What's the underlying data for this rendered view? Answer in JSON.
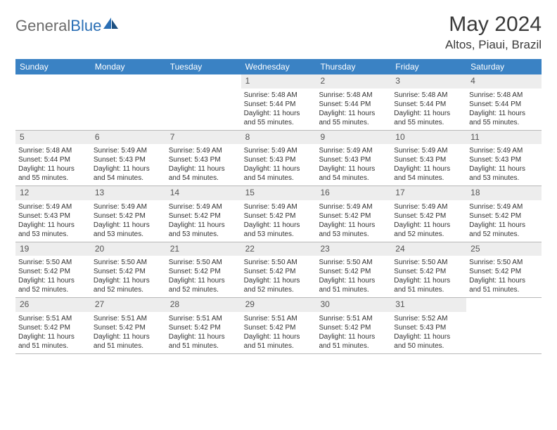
{
  "brand": {
    "part1": "General",
    "part2": "Blue"
  },
  "title": "May 2024",
  "location": "Altos, Piaui, Brazil",
  "colors": {
    "header_bg": "#3a82c4",
    "header_text": "#ffffff",
    "daynum_bg": "#ededed",
    "border": "#b8b8b8",
    "body_text": "#333333",
    "logo_gray": "#6b6b6b",
    "logo_blue": "#2a6fb5"
  },
  "day_names": [
    "Sunday",
    "Monday",
    "Tuesday",
    "Wednesday",
    "Thursday",
    "Friday",
    "Saturday"
  ],
  "labels": {
    "sunrise": "Sunrise:",
    "sunset": "Sunset:",
    "daylight": "Daylight:"
  },
  "weeks": [
    [
      {
        "empty": true
      },
      {
        "empty": true
      },
      {
        "empty": true
      },
      {
        "day": "1",
        "sunrise": "5:48 AM",
        "sunset": "5:44 PM",
        "daylight": "11 hours and 55 minutes."
      },
      {
        "day": "2",
        "sunrise": "5:48 AM",
        "sunset": "5:44 PM",
        "daylight": "11 hours and 55 minutes."
      },
      {
        "day": "3",
        "sunrise": "5:48 AM",
        "sunset": "5:44 PM",
        "daylight": "11 hours and 55 minutes."
      },
      {
        "day": "4",
        "sunrise": "5:48 AM",
        "sunset": "5:44 PM",
        "daylight": "11 hours and 55 minutes."
      }
    ],
    [
      {
        "day": "5",
        "sunrise": "5:48 AM",
        "sunset": "5:44 PM",
        "daylight": "11 hours and 55 minutes."
      },
      {
        "day": "6",
        "sunrise": "5:49 AM",
        "sunset": "5:43 PM",
        "daylight": "11 hours and 54 minutes."
      },
      {
        "day": "7",
        "sunrise": "5:49 AM",
        "sunset": "5:43 PM",
        "daylight": "11 hours and 54 minutes."
      },
      {
        "day": "8",
        "sunrise": "5:49 AM",
        "sunset": "5:43 PM",
        "daylight": "11 hours and 54 minutes."
      },
      {
        "day": "9",
        "sunrise": "5:49 AM",
        "sunset": "5:43 PM",
        "daylight": "11 hours and 54 minutes."
      },
      {
        "day": "10",
        "sunrise": "5:49 AM",
        "sunset": "5:43 PM",
        "daylight": "11 hours and 54 minutes."
      },
      {
        "day": "11",
        "sunrise": "5:49 AM",
        "sunset": "5:43 PM",
        "daylight": "11 hours and 53 minutes."
      }
    ],
    [
      {
        "day": "12",
        "sunrise": "5:49 AM",
        "sunset": "5:43 PM",
        "daylight": "11 hours and 53 minutes."
      },
      {
        "day": "13",
        "sunrise": "5:49 AM",
        "sunset": "5:42 PM",
        "daylight": "11 hours and 53 minutes."
      },
      {
        "day": "14",
        "sunrise": "5:49 AM",
        "sunset": "5:42 PM",
        "daylight": "11 hours and 53 minutes."
      },
      {
        "day": "15",
        "sunrise": "5:49 AM",
        "sunset": "5:42 PM",
        "daylight": "11 hours and 53 minutes."
      },
      {
        "day": "16",
        "sunrise": "5:49 AM",
        "sunset": "5:42 PM",
        "daylight": "11 hours and 53 minutes."
      },
      {
        "day": "17",
        "sunrise": "5:49 AM",
        "sunset": "5:42 PM",
        "daylight": "11 hours and 52 minutes."
      },
      {
        "day": "18",
        "sunrise": "5:49 AM",
        "sunset": "5:42 PM",
        "daylight": "11 hours and 52 minutes."
      }
    ],
    [
      {
        "day": "19",
        "sunrise": "5:50 AM",
        "sunset": "5:42 PM",
        "daylight": "11 hours and 52 minutes."
      },
      {
        "day": "20",
        "sunrise": "5:50 AM",
        "sunset": "5:42 PM",
        "daylight": "11 hours and 52 minutes."
      },
      {
        "day": "21",
        "sunrise": "5:50 AM",
        "sunset": "5:42 PM",
        "daylight": "11 hours and 52 minutes."
      },
      {
        "day": "22",
        "sunrise": "5:50 AM",
        "sunset": "5:42 PM",
        "daylight": "11 hours and 52 minutes."
      },
      {
        "day": "23",
        "sunrise": "5:50 AM",
        "sunset": "5:42 PM",
        "daylight": "11 hours and 51 minutes."
      },
      {
        "day": "24",
        "sunrise": "5:50 AM",
        "sunset": "5:42 PM",
        "daylight": "11 hours and 51 minutes."
      },
      {
        "day": "25",
        "sunrise": "5:50 AM",
        "sunset": "5:42 PM",
        "daylight": "11 hours and 51 minutes."
      }
    ],
    [
      {
        "day": "26",
        "sunrise": "5:51 AM",
        "sunset": "5:42 PM",
        "daylight": "11 hours and 51 minutes."
      },
      {
        "day": "27",
        "sunrise": "5:51 AM",
        "sunset": "5:42 PM",
        "daylight": "11 hours and 51 minutes."
      },
      {
        "day": "28",
        "sunrise": "5:51 AM",
        "sunset": "5:42 PM",
        "daylight": "11 hours and 51 minutes."
      },
      {
        "day": "29",
        "sunrise": "5:51 AM",
        "sunset": "5:42 PM",
        "daylight": "11 hours and 51 minutes."
      },
      {
        "day": "30",
        "sunrise": "5:51 AM",
        "sunset": "5:42 PM",
        "daylight": "11 hours and 51 minutes."
      },
      {
        "day": "31",
        "sunrise": "5:52 AM",
        "sunset": "5:43 PM",
        "daylight": "11 hours and 50 minutes."
      },
      {
        "empty": true
      }
    ]
  ]
}
